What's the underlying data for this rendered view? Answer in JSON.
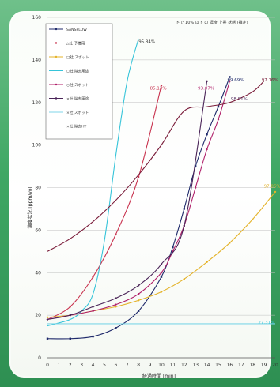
{
  "chart_data": {
    "type": "line",
    "title": "ドで 10% 以下 の 濃度 上昇 状態 (推定)",
    "xlabel": "経過時間 [min]",
    "ylabel": "濃度状況 [ppm/vol]",
    "xlim": [
      0,
      20
    ],
    "ylim": [
      0,
      160
    ],
    "xticks": [
      "0",
      "1",
      "2",
      "3",
      "4",
      "5",
      "6",
      "7",
      "8",
      "9",
      "10",
      "11",
      "12",
      "13",
      "14",
      "15",
      "16",
      "17",
      "18",
      "19",
      "20"
    ],
    "yticks": [
      "0",
      "20",
      "40",
      "60",
      "80",
      "100",
      "120",
      "140",
      "160"
    ],
    "grid": true,
    "legend_position": "top-left",
    "series": [
      {
        "name": "SANSPLOW",
        "color": "#1f2a6b",
        "marker": "square",
        "x": [
          0,
          2,
          4,
          6,
          8,
          10,
          11,
          12,
          13,
          14,
          15,
          16
        ],
        "y": [
          9,
          9,
          10,
          14,
          22,
          38,
          52,
          70,
          90,
          105,
          118,
          132
        ]
      },
      {
        "name": "△社 予備用",
        "color": "#c8324e",
        "marker": "circle",
        "x": [
          0,
          2,
          4,
          6,
          8,
          10
        ],
        "y": [
          18,
          24,
          38,
          58,
          85,
          128
        ]
      },
      {
        "name": "□社 スポット",
        "color": "#e4b32a",
        "marker": "circle",
        "x": [
          0,
          2,
          4,
          6,
          8,
          10,
          12,
          14,
          16,
          18,
          20
        ],
        "y": [
          19,
          20,
          22,
          24,
          27,
          31,
          37,
          45,
          54,
          65,
          78
        ]
      },
      {
        "name": "○社 除去用途",
        "color": "#36c4d9",
        "marker": "none",
        "x": [
          0,
          2,
          3,
          4,
          5,
          6,
          7,
          8
        ],
        "y": [
          15,
          18,
          22,
          30,
          55,
          95,
          130,
          150
        ]
      },
      {
        "name": "○社 スポット",
        "color": "#b0206a",
        "marker": "circle",
        "x": [
          0,
          2,
          4,
          6,
          8,
          10,
          11,
          12,
          13,
          14,
          15,
          16
        ],
        "y": [
          18,
          20,
          22,
          25,
          30,
          40,
          50,
          62,
          80,
          98,
          112,
          130
        ]
      },
      {
        "name": "×社 除去用途",
        "color": "#4a2458",
        "marker": "circle",
        "x": [
          0,
          2,
          4,
          6,
          8,
          10,
          12,
          14
        ],
        "y": [
          18,
          20,
          24,
          28,
          34,
          44,
          62,
          130
        ]
      },
      {
        "name": "×社 スポット",
        "color": "#7fd6e8",
        "marker": "none",
        "x": [
          0,
          20
        ],
        "y": [
          16,
          16
        ]
      },
      {
        "name": "×社 除去HY",
        "color": "#7a1c3a",
        "marker": "none",
        "x": [
          0,
          2,
          4,
          6,
          8,
          10,
          12,
          14,
          16,
          18,
          19
        ],
        "y": [
          50,
          56,
          64,
          74,
          86,
          100,
          116,
          118,
          120,
          125,
          130
        ]
      }
    ],
    "annotations": [
      {
        "text": "95.84%",
        "x": 8,
        "y": 148,
        "color": "#333333"
      },
      {
        "text": "85.13%",
        "x": 9,
        "y": 126,
        "color": "#c8324e"
      },
      {
        "text": "93.07%",
        "x": 13.2,
        "y": 126,
        "color": "#b0206a"
      },
      {
        "text": "99.69%",
        "x": 15.8,
        "y": 130,
        "color": "#1f2a6b"
      },
      {
        "text": "98.91%",
        "x": 16.1,
        "y": 121,
        "color": "#4a2458"
      },
      {
        "text": "97.16%",
        "x": 18.8,
        "y": 130,
        "color": "#7a1c3a"
      },
      {
        "text": "97.06%",
        "x": 19.0,
        "y": 80,
        "color": "#e4b32a"
      },
      {
        "text": "27.31%",
        "x": 18.5,
        "y": 16,
        "color": "#36c4d9"
      }
    ]
  }
}
